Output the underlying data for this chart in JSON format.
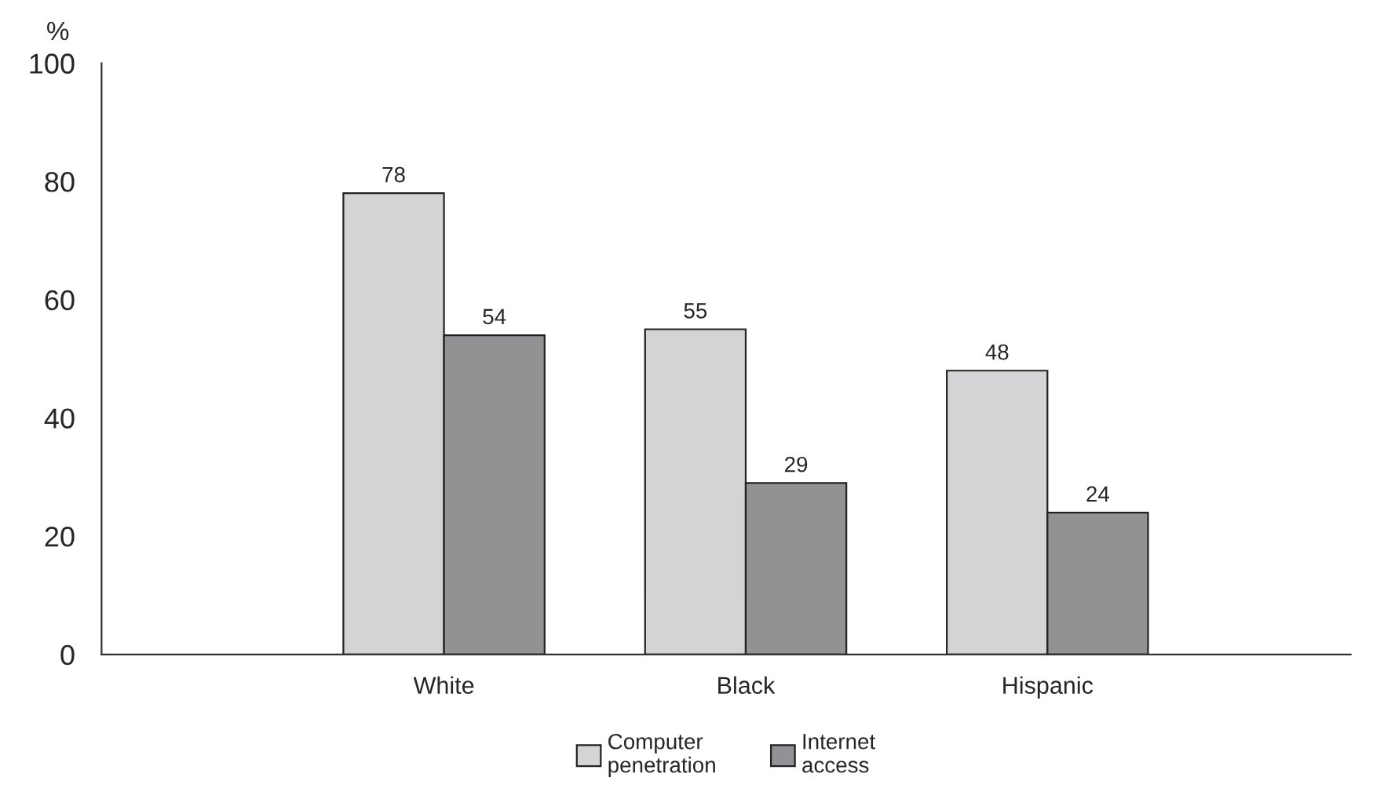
{
  "chart_data": {
    "type": "bar",
    "ylabel": "%",
    "categories": [
      "White",
      "Black",
      "Hispanic"
    ],
    "series": [
      {
        "name": "Computer\npenetration",
        "color": "#d4d4d6",
        "values": [
          78,
          55,
          48
        ]
      },
      {
        "name": "Internet\naccess",
        "color": "#929296",
        "values": [
          54,
          29,
          24
        ]
      }
    ],
    "ylim": [
      0,
      100
    ],
    "yticks": [
      0,
      20,
      40,
      60,
      80,
      100
    ],
    "grid": false,
    "legend": "bottom",
    "data_labels": true
  }
}
